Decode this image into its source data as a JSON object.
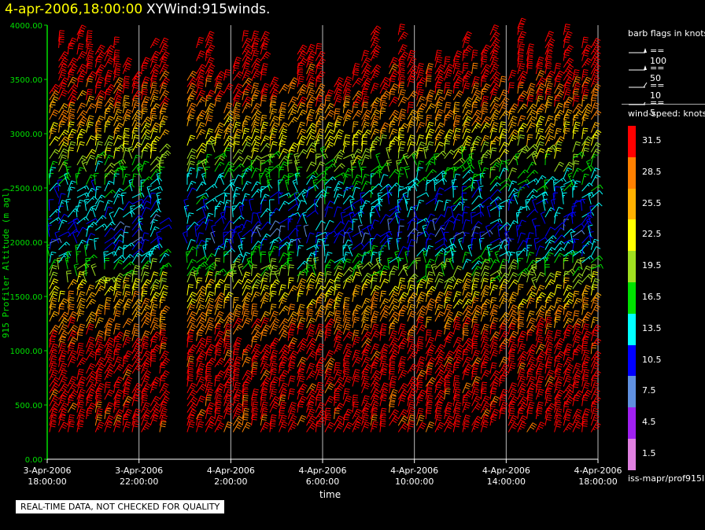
{
  "header": {
    "date": "4-apr-2006,18:00:00",
    "product": "XYWind:915winds."
  },
  "legend": {
    "barb_title": "barb flags in knots",
    "barbs": [
      {
        "label": "== 100",
        "kind": "flag"
      },
      {
        "label": "== 50",
        "kind": "flag"
      },
      {
        "label": "== 10",
        "kind": "long"
      },
      {
        "label": "== 5",
        "kind": "short"
      }
    ],
    "speed_title": "wind-speed: knots",
    "speed_levels": [
      {
        "label": "31.5",
        "color": "#ff0000"
      },
      {
        "label": "28.5",
        "color": "#ff8000"
      },
      {
        "label": "25.5",
        "color": "#ffb000"
      },
      {
        "label": "22.5",
        "color": "#ffff00"
      },
      {
        "label": "19.5",
        "color": "#a0e020"
      },
      {
        "label": "16.5",
        "color": "#00e000"
      },
      {
        "label": "13.5",
        "color": "#00ffff"
      },
      {
        "label": "10.5",
        "color": "#0000ff"
      },
      {
        "label": "7.5",
        "color": "#6090e0"
      },
      {
        "label": "4.5",
        "color": "#a020f0"
      },
      {
        "label": "1.5",
        "color": "#e080e0"
      }
    ]
  },
  "source": "iss-mapr/prof915l",
  "notice": "REAL-TIME DATA, NOT CHECKED FOR QUALITY",
  "chart_data": {
    "type": "scatter",
    "subtype": "wind-barb time-height",
    "title": "",
    "xlabel": "time",
    "ylabel": "915 Profiler Altitude (m agl)",
    "ylim": [
      0,
      4000
    ],
    "xlim_hours": [
      0,
      24
    ],
    "y_ticks": [
      "0.00",
      "500.00",
      "1000.00",
      "1500.00",
      "2000.00",
      "2500.00",
      "3000.00",
      "3500.00",
      "4000.00"
    ],
    "x_ticks": [
      {
        "date": "3-Apr-2006",
        "time": "18:00:00"
      },
      {
        "date": "3-Apr-2006",
        "time": "22:00:00"
      },
      {
        "date": "4-Apr-2006",
        "time": "2:00:00"
      },
      {
        "date": "4-Apr-2006",
        "time": "6:00:00"
      },
      {
        "date": "4-Apr-2006",
        "time": "10:00:00"
      },
      {
        "date": "4-Apr-2006",
        "time": "14:00:00"
      },
      {
        "date": "4-Apr-2006",
        "time": "18:00:00"
      }
    ],
    "grid": "vertical",
    "legend_position": "right",
    "data_gap_hours": [
      5.2,
      6.0
    ],
    "speed_by_altitude": [
      {
        "altitude_m": 250,
        "speed_kt": 32
      },
      {
        "altitude_m": 1000,
        "speed_kt": 32
      },
      {
        "altitude_m": 1500,
        "speed_kt": 24
      },
      {
        "altitude_m": 2000,
        "speed_kt": 10
      },
      {
        "altitude_m": 2500,
        "speed_kt": 14
      },
      {
        "altitude_m": 3000,
        "speed_kt": 25
      },
      {
        "altitude_m": 3500,
        "speed_kt": 32
      },
      {
        "altitude_m": 4000,
        "speed_kt": 34
      }
    ]
  }
}
